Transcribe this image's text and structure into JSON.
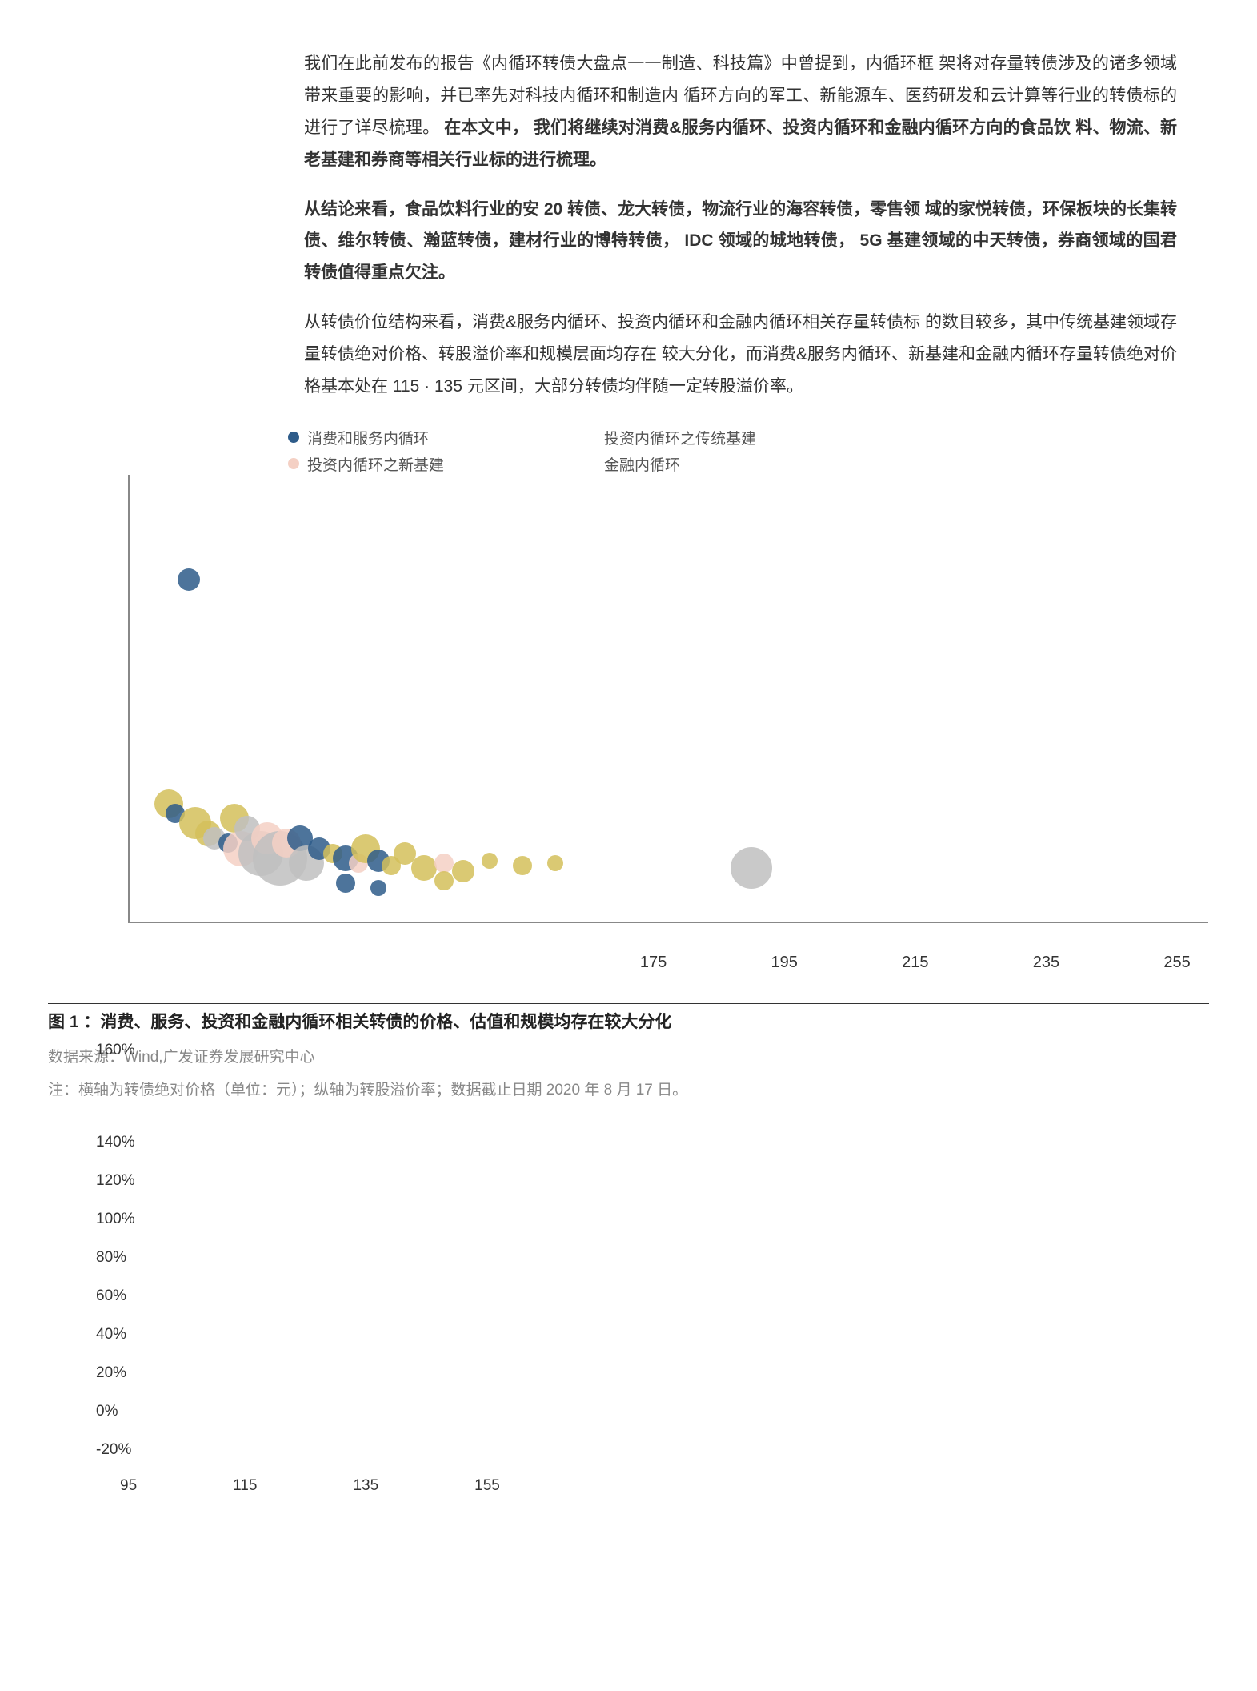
{
  "paragraphs": {
    "p1a": "我们在此前发布的报告《内循环转债大盘点一一制造、科技篇》中曾提到，内循环框 架将对存量转债涉及的诸多领域带来重要的影响，并已率先对科技内循环和制造内 循环方向的军工、新能源车、医药研发和云计算等行业的转债标的进行了详尽梳理。 ",
    "p1b": "在本文中， 我们将继续对消费&服务内循环、投资内循环和金融内循环方向的食品饮 料、物流、新老基建和券商等相关行业标的进行梳理。",
    "p2": "从结论来看，食品饮料行业的安 20 转债、龙大转债，物流行业的海容转债，零售领 域的家悦转债，环保板块的长集转债、维尔转债、瀚蓝转债，建材行业的博特转债， IDC 领域的城地转债， 5G 基建领域的中天转债，券商领域的国君转债值得重点欠注。",
    "p3": "从转债价位结构来看，消费&服务内循环、投资内循环和金融内循环相关存量转债标 的数目较多，其中传统基建领域存量转债绝对价格、转股溢价率和规模层面均存在 较大分化，而消费&服务内循环、新基建和金融内循环存量转债绝对价格基本处在 115 · 135 元区间，大部分转债均伴随一定转股溢价率。"
  },
  "legend": {
    "items": [
      {
        "label": "消费和服务内循环",
        "color": "#2e5c8a"
      },
      {
        "label": "投资内循环之新基建",
        "color": "#f4d0c4"
      },
      {
        "label": "投资内循环之传统基建",
        "color": "#bfbfbf"
      },
      {
        "label": "金融内循环",
        "color": "#d4c05a"
      }
    ]
  },
  "chart": {
    "type": "bubble",
    "xlim": [
      95,
      260
    ],
    "ylim": [
      -20,
      160
    ],
    "xticks_upper": [
      175,
      195,
      215,
      235,
      255
    ],
    "background_color": "#ffffff",
    "axis_color": "#888888",
    "colors": {
      "consumer": "#2e5c8a",
      "newinfra": "#f4d0c4",
      "tradinfra": "#bfbfbf",
      "finance": "#d4c05a"
    },
    "points": [
      {
        "x": 104,
        "y": 118,
        "r": 14,
        "c": "consumer"
      },
      {
        "x": 101,
        "y": 28,
        "r": 18,
        "c": "finance"
      },
      {
        "x": 102,
        "y": 24,
        "r": 12,
        "c": "consumer"
      },
      {
        "x": 105,
        "y": 20,
        "r": 20,
        "c": "finance"
      },
      {
        "x": 107,
        "y": 16,
        "r": 16,
        "c": "finance"
      },
      {
        "x": 108,
        "y": 14,
        "r": 14,
        "c": "tradinfra"
      },
      {
        "x": 110,
        "y": 12,
        "r": 12,
        "c": "consumer"
      },
      {
        "x": 111,
        "y": 22,
        "r": 18,
        "c": "finance"
      },
      {
        "x": 112,
        "y": 10,
        "r": 22,
        "c": "newinfra"
      },
      {
        "x": 113,
        "y": 18,
        "r": 16,
        "c": "tradinfra"
      },
      {
        "x": 115,
        "y": 8,
        "r": 28,
        "c": "tradinfra"
      },
      {
        "x": 116,
        "y": 14,
        "r": 20,
        "c": "newinfra"
      },
      {
        "x": 118,
        "y": 6,
        "r": 34,
        "c": "tradinfra"
      },
      {
        "x": 119,
        "y": 12,
        "r": 18,
        "c": "newinfra"
      },
      {
        "x": 121,
        "y": 14,
        "r": 16,
        "c": "consumer"
      },
      {
        "x": 122,
        "y": 4,
        "r": 22,
        "c": "tradinfra"
      },
      {
        "x": 124,
        "y": 10,
        "r": 14,
        "c": "consumer"
      },
      {
        "x": 126,
        "y": 8,
        "r": 12,
        "c": "finance"
      },
      {
        "x": 128,
        "y": 6,
        "r": 16,
        "c": "consumer"
      },
      {
        "x": 130,
        "y": 4,
        "r": 12,
        "c": "newinfra"
      },
      {
        "x": 131,
        "y": 10,
        "r": 18,
        "c": "finance"
      },
      {
        "x": 133,
        "y": 5,
        "r": 14,
        "c": "consumer"
      },
      {
        "x": 135,
        "y": 3,
        "r": 12,
        "c": "finance"
      },
      {
        "x": 137,
        "y": 8,
        "r": 14,
        "c": "finance"
      },
      {
        "x": 140,
        "y": 2,
        "r": 16,
        "c": "finance"
      },
      {
        "x": 143,
        "y": 4,
        "r": 12,
        "c": "newinfra"
      },
      {
        "x": 146,
        "y": 1,
        "r": 14,
        "c": "finance"
      },
      {
        "x": 150,
        "y": 5,
        "r": 10,
        "c": "finance"
      },
      {
        "x": 155,
        "y": 3,
        "r": 12,
        "c": "finance"
      },
      {
        "x": 160,
        "y": 4,
        "r": 10,
        "c": "finance"
      },
      {
        "x": 128,
        "y": -4,
        "r": 12,
        "c": "consumer"
      },
      {
        "x": 133,
        "y": -6,
        "r": 10,
        "c": "consumer"
      },
      {
        "x": 143,
        "y": -3,
        "r": 12,
        "c": "finance"
      },
      {
        "x": 190,
        "y": 2,
        "r": 26,
        "c": "tradinfra"
      }
    ]
  },
  "caption": "图 1 ：消费、服务、投资和金融内循环相关转债的价格、估值和规模均存在较大分化",
  "source_label": "数据来源：Wind,广发证券发展研究中心",
  "overlap_tick": "160%",
  "note": "注：横轴为转债绝对价格（单位：元）；纵轴为转股溢价率；数据截止日期 2020 年 8 月 17 日。",
  "yticks": [
    "140%",
    "120%",
    "100%",
    "80%",
    "60%",
    "40%",
    "20%",
    "0%",
    "-20%"
  ],
  "bottom_xticks": [
    "95",
    "115",
    "135",
    "155"
  ]
}
